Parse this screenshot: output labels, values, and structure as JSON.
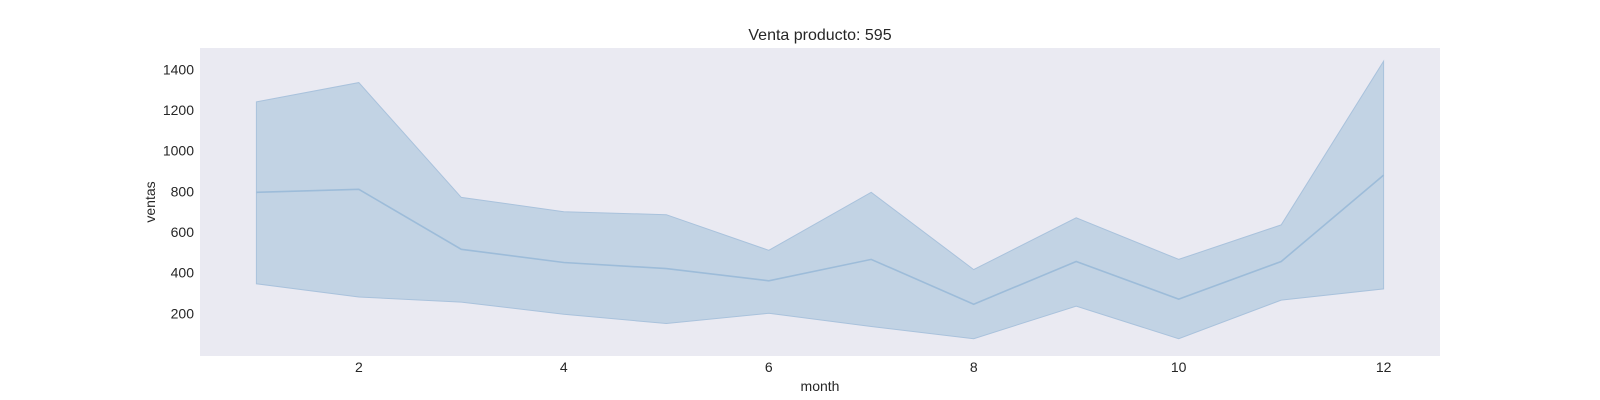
{
  "chart_data": {
    "type": "line",
    "title": "Venta producto: 595",
    "xlabel": "month",
    "ylabel": "ventas",
    "x": [
      1,
      2,
      3,
      4,
      5,
      6,
      7,
      8,
      9,
      10,
      11,
      12
    ],
    "series": [
      {
        "values": [
          795,
          810,
          515,
          450,
          420,
          360,
          465,
          245,
          455,
          270,
          455,
          880
        ],
        "upper": [
          1240,
          1335,
          770,
          700,
          685,
          510,
          795,
          415,
          670,
          465,
          635,
          1440
        ],
        "lower": [
          345,
          280,
          255,
          195,
          150,
          200,
          135,
          75,
          235,
          75,
          265,
          320
        ]
      }
    ],
    "xticks": [
      2,
      4,
      6,
      8,
      10,
      12
    ],
    "yticks": [
      200,
      400,
      600,
      800,
      1000,
      1200,
      1400
    ],
    "xlim": [
      0.45,
      12.55
    ],
    "ylim": [
      -10,
      1505
    ],
    "grid": false,
    "colors": {
      "background": "#eaeaf2",
      "line": "#9dbcd9",
      "band": "#c2d3e4",
      "band_edge": "#a9c2dc"
    }
  }
}
